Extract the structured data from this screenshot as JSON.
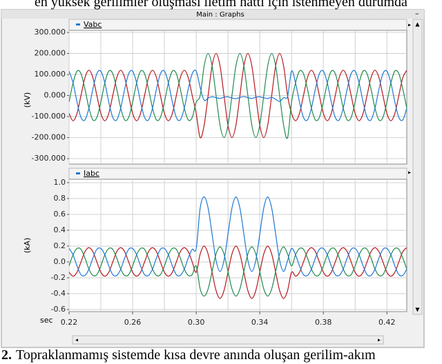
{
  "document": {
    "text_above": "en yüksek gerilimler oluşması iletim hattı için istenmeyen durumda",
    "caption_number": "2.",
    "caption": "Topraklanmamış sistemde kısa devre anında oluşan gerilim-akım"
  },
  "window": {
    "title": "Main : Graphs"
  },
  "chart_data": [
    {
      "type": "line",
      "legend": "Vabc",
      "y_label": "(kV)",
      "xlim": [
        0.22,
        0.4325
      ],
      "ylim": [
        -326,
        310
      ],
      "grid": true,
      "yticks": [
        {
          "value": 300,
          "label": "300.000"
        },
        {
          "value": 200,
          "label": "200.000"
        },
        {
          "value": 100,
          "label": "100.000"
        },
        {
          "value": 0,
          "label": "0.000"
        },
        {
          "value": -100,
          "label": "-100.000"
        },
        {
          "value": -200,
          "label": "-200.000"
        },
        {
          "value": -300,
          "label": "-300.000"
        }
      ],
      "xgrid": [
        0.22,
        0.24,
        0.26,
        0.28,
        0.3,
        0.32,
        0.34,
        0.36,
        0.38,
        0.4,
        0.42
      ],
      "x": [
        0.22,
        0.2225,
        0.225,
        0.2275,
        0.23,
        0.2325,
        0.235,
        0.2375,
        0.24,
        0.2425,
        0.245,
        0.2475,
        0.25,
        0.2525,
        0.255,
        0.2575,
        0.26,
        0.2625,
        0.265,
        0.2675,
        0.27,
        0.2725,
        0.275,
        0.2775,
        0.28,
        0.2825,
        0.285,
        0.2875,
        0.29,
        0.2925,
        0.295,
        0.2975,
        0.3,
        0.3025,
        0.305,
        0.3075,
        0.31,
        0.3125,
        0.315,
        0.3175,
        0.32,
        0.3225,
        0.325,
        0.3275,
        0.33,
        0.3325,
        0.335,
        0.3375,
        0.34,
        0.3425,
        0.345,
        0.3475,
        0.35,
        0.3525,
        0.355,
        0.3575,
        0.36,
        0.3625,
        0.365,
        0.3675,
        0.37,
        0.3725,
        0.375,
        0.3775,
        0.38,
        0.3825,
        0.385,
        0.3875,
        0.39,
        0.3925,
        0.395,
        0.3975,
        0.4,
        0.4025,
        0.405,
        0.4075,
        0.41,
        0.4125,
        0.415,
        0.4175,
        0.42,
        0.4225,
        0.425,
        0.4275,
        0.43,
        0.4325
      ],
      "series": [
        {
          "color": "#b5161b",
          "values": [
            -85,
            -120,
            -85,
            0,
            85,
            120,
            85,
            0,
            -85,
            -120,
            -85,
            0,
            85,
            120,
            85,
            0,
            -85,
            -120,
            -85,
            0,
            85,
            120,
            85,
            0,
            -85,
            -120,
            -85,
            0,
            85,
            120,
            85,
            0,
            -85,
            -200,
            -141,
            0,
            141,
            200,
            141,
            0,
            -141,
            -200,
            -141,
            0,
            141,
            200,
            141,
            0,
            -141,
            -200,
            -141,
            0,
            141,
            200,
            141,
            0,
            -85,
            -120,
            -85,
            0,
            85,
            120,
            85,
            0,
            -85,
            -120,
            -85,
            0,
            85,
            120,
            85,
            0,
            -85,
            -120,
            -85,
            0,
            85,
            120,
            85,
            0,
            -85,
            -120,
            -85,
            0,
            85,
            120
          ]
        },
        {
          "color": "#1f8a4c",
          "values": [
            -31,
            60,
            116,
            104,
            31,
            -60,
            -116,
            -104,
            -31,
            60,
            116,
            104,
            31,
            -60,
            -116,
            -104,
            -31,
            60,
            116,
            104,
            31,
            -60,
            -116,
            -104,
            -31,
            60,
            116,
            104,
            31,
            -60,
            -116,
            -104,
            -31,
            0,
            141,
            200,
            141,
            0,
            -141,
            -200,
            -141,
            0,
            141,
            200,
            141,
            0,
            -141,
            -200,
            -141,
            0,
            141,
            200,
            141,
            0,
            -141,
            -200,
            -31,
            60,
            116,
            104,
            31,
            -60,
            -116,
            -104,
            -31,
            60,
            116,
            104,
            31,
            -60,
            -116,
            -104,
            -31,
            60,
            116,
            104,
            31,
            -60,
            -116,
            -104,
            -31,
            60,
            116,
            104,
            31,
            -60
          ]
        },
        {
          "color": "#1c78d4",
          "values": [
            116,
            60,
            -31,
            -104,
            -116,
            -60,
            31,
            104,
            116,
            60,
            -31,
            -104,
            -116,
            -60,
            31,
            104,
            116,
            60,
            -31,
            -104,
            -116,
            -60,
            31,
            104,
            116,
            60,
            -31,
            -104,
            -116,
            -60,
            31,
            104,
            116,
            38,
            -22,
            -12,
            -6,
            -10,
            -14,
            -8,
            -6,
            -12,
            -15,
            -9,
            -5,
            -10,
            -14,
            -8,
            -6,
            -11,
            -14,
            -9,
            -18,
            -28,
            -10,
            -4,
            116,
            60,
            -31,
            -104,
            -116,
            -60,
            31,
            104,
            116,
            60,
            -31,
            -104,
            -116,
            -60,
            31,
            104,
            116,
            60,
            -31,
            -104,
            -116,
            -60,
            31,
            104,
            116,
            60,
            -31,
            -104,
            -116,
            -60
          ]
        }
      ]
    },
    {
      "type": "line",
      "legend": "Iabc",
      "y_label": "(kA)",
      "x_label": "sec",
      "xlim": [
        0.22,
        0.4325
      ],
      "ylim": [
        -0.626,
        1.043
      ],
      "grid": true,
      "yticks": [
        {
          "value": 1,
          "label": "1.0"
        },
        0.8,
        0.6,
        0.4,
        0.2,
        {
          "value": 0,
          "label": "0.0"
        },
        -0.2,
        -0.4,
        -0.6
      ],
      "xgrid": [
        0.22,
        0.24,
        0.26,
        0.28,
        0.3,
        0.32,
        0.34,
        0.36,
        0.38,
        0.4,
        0.42
      ],
      "xticks": [
        0.22,
        0.26,
        {
          "value": 0.3,
          "label": "0.30"
        },
        0.34,
        0.38,
        0.42
      ],
      "x": [
        0.22,
        0.2225,
        0.225,
        0.2275,
        0.23,
        0.2325,
        0.235,
        0.2375,
        0.24,
        0.2425,
        0.245,
        0.2475,
        0.25,
        0.2525,
        0.255,
        0.2575,
        0.26,
        0.2625,
        0.265,
        0.2675,
        0.27,
        0.2725,
        0.275,
        0.2775,
        0.28,
        0.2825,
        0.285,
        0.2875,
        0.29,
        0.2925,
        0.295,
        0.2975,
        0.3,
        0.3025,
        0.305,
        0.3075,
        0.31,
        0.3125,
        0.315,
        0.3175,
        0.32,
        0.3225,
        0.325,
        0.3275,
        0.33,
        0.3325,
        0.335,
        0.3375,
        0.34,
        0.3425,
        0.345,
        0.3475,
        0.35,
        0.3525,
        0.355,
        0.3575,
        0.36,
        0.3625,
        0.365,
        0.3675,
        0.37,
        0.3725,
        0.375,
        0.3775,
        0.38,
        0.3825,
        0.385,
        0.3875,
        0.39,
        0.3925,
        0.395,
        0.3975,
        0.4,
        0.4025,
        0.405,
        0.4075,
        0.41,
        0.4125,
        0.415,
        0.4175,
        0.42,
        0.4225,
        0.425,
        0.4275,
        0.43,
        0.4325
      ],
      "series": [
        {
          "color": "#b5161b",
          "values": [
            -0.13,
            -0.18,
            -0.13,
            0,
            0.13,
            0.18,
            0.13,
            0,
            -0.13,
            -0.18,
            -0.13,
            0,
            0.13,
            0.18,
            0.13,
            0,
            -0.13,
            -0.18,
            -0.13,
            0,
            0.13,
            0.18,
            0.13,
            0,
            -0.13,
            -0.18,
            -0.13,
            0,
            0.13,
            0.18,
            0.13,
            0,
            -0.13,
            0.1,
            0.2,
            0.1,
            -0.13,
            -0.36,
            -0.46,
            -0.36,
            -0.13,
            0.1,
            0.2,
            0.1,
            -0.13,
            -0.36,
            -0.46,
            -0.36,
            -0.13,
            0.1,
            0.2,
            0.1,
            -0.13,
            -0.36,
            -0.46,
            -0.36,
            -0.13,
            -0.18,
            -0.13,
            0,
            0.13,
            0.18,
            0.13,
            0,
            -0.13,
            -0.18,
            -0.13,
            0,
            0.13,
            0.18,
            0.13,
            0,
            -0.13,
            -0.18,
            -0.13,
            0,
            0.13,
            0.18,
            0.13,
            0,
            -0.13,
            -0.18,
            -0.13,
            0,
            0.13,
            0.18
          ]
        },
        {
          "color": "#1f8a4c",
          "values": [
            -0.05,
            0.09,
            0.17,
            0.16,
            0.05,
            -0.09,
            -0.17,
            -0.16,
            -0.05,
            0.09,
            0.17,
            0.16,
            0.05,
            -0.09,
            -0.17,
            -0.16,
            -0.05,
            0.09,
            0.17,
            0.16,
            0.05,
            -0.09,
            -0.17,
            -0.16,
            -0.05,
            0.09,
            0.17,
            0.16,
            0.05,
            -0.09,
            -0.17,
            -0.16,
            -0.05,
            -0.34,
            -0.43,
            -0.34,
            -0.12,
            0.1,
            0.19,
            0.1,
            -0.12,
            -0.34,
            -0.43,
            -0.34,
            -0.12,
            0.1,
            0.19,
            0.1,
            -0.12,
            -0.34,
            -0.43,
            -0.34,
            -0.12,
            0.1,
            0.19,
            0.1,
            -0.05,
            0.09,
            0.17,
            0.16,
            0.05,
            -0.09,
            -0.17,
            -0.16,
            -0.05,
            0.09,
            0.17,
            0.16,
            0.05,
            -0.09,
            -0.17,
            -0.16,
            -0.05,
            0.09,
            0.17,
            0.16,
            0.05,
            -0.09,
            -0.17,
            -0.16,
            -0.05,
            0.09,
            0.17,
            0.16,
            0.05,
            -0.09
          ]
        },
        {
          "color": "#1c78d4",
          "values": [
            0.17,
            0.09,
            -0.05,
            -0.16,
            -0.17,
            -0.09,
            0.05,
            0.16,
            0.17,
            0.09,
            -0.05,
            -0.16,
            -0.17,
            -0.09,
            0.05,
            0.16,
            0.17,
            0.09,
            -0.05,
            -0.16,
            -0.17,
            -0.09,
            0.05,
            0.16,
            0.17,
            0.09,
            -0.05,
            -0.16,
            -0.17,
            -0.09,
            0.05,
            0.16,
            0.17,
            0.68,
            0.82,
            0.68,
            0.35,
            0.02,
            -0.12,
            0.02,
            0.35,
            0.68,
            0.82,
            0.68,
            0.35,
            0.02,
            -0.12,
            0.02,
            0.35,
            0.68,
            0.82,
            0.68,
            0.35,
            0.02,
            -0.12,
            0.02,
            0.17,
            0.09,
            -0.05,
            -0.16,
            -0.17,
            -0.09,
            0.05,
            0.16,
            0.17,
            0.09,
            -0.05,
            -0.16,
            -0.17,
            -0.09,
            0.05,
            0.16,
            0.17,
            0.09,
            -0.05,
            -0.16,
            -0.17,
            -0.09,
            0.05,
            0.16,
            0.17,
            0.09,
            -0.05,
            -0.16,
            -0.17,
            -0.09
          ]
        }
      ]
    }
  ]
}
